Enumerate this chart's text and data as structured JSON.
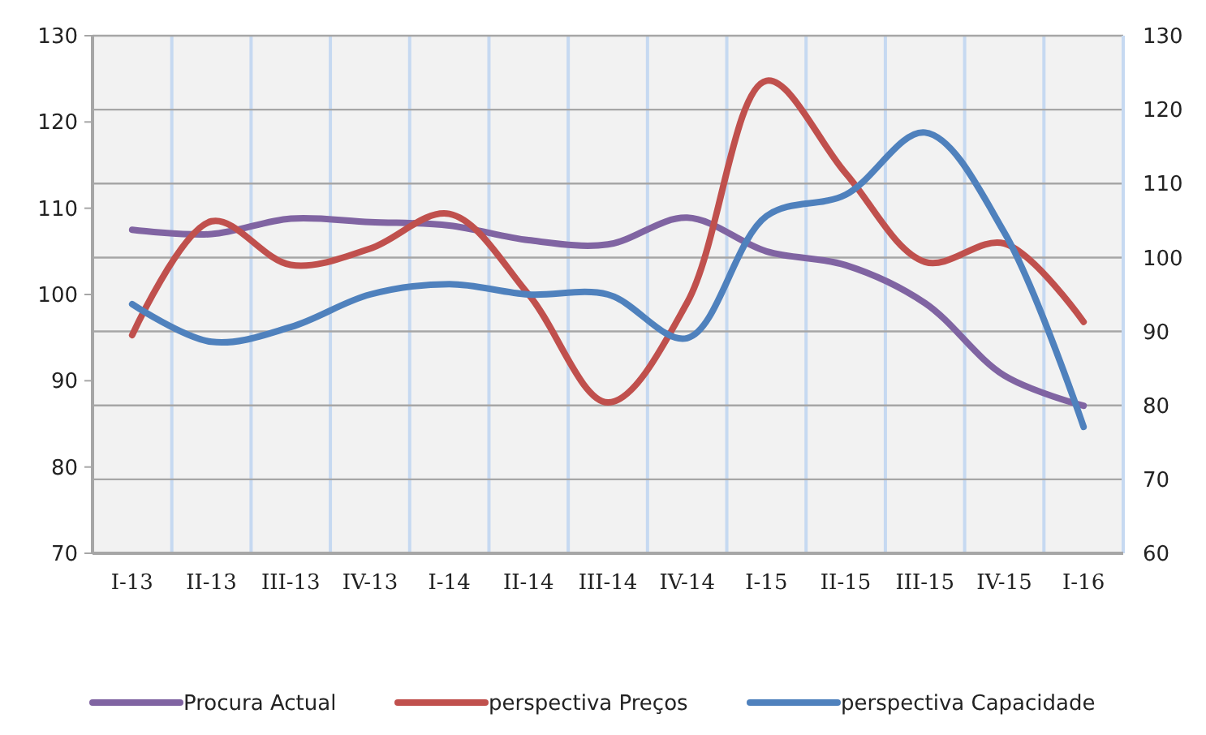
{
  "chart_data": {
    "type": "line",
    "categories": [
      "I-13",
      "II-13",
      "III-13",
      "IV-13",
      "I-14",
      "II-14",
      "III-14",
      "IV-14",
      "I-15",
      "II-15",
      "III-15",
      "IV-15",
      "I-16"
    ],
    "series": [
      {
        "name": "Procura Actual",
        "color": "#8064a2",
        "values": [
          107.5,
          107,
          108.8,
          108.4,
          108,
          106.3,
          105.8,
          108.9,
          105,
          103.4,
          99,
          90.6,
          87.1
        ]
      },
      {
        "name": "perspectiva Preços",
        "color": "#c0504d",
        "axis": "y2",
        "values": [
          89.5,
          104.9,
          99,
          101.2,
          105.9,
          95,
          80.4,
          93.9,
          123.9,
          111.4,
          99.4,
          101.9,
          91.3
        ]
      },
      {
        "name": "perspectiva Capacidade",
        "color": "#4f81bd",
        "axis": "y2",
        "values": [
          93.7,
          88.6,
          90.6,
          95,
          96.4,
          95,
          95,
          89.1,
          105.6,
          108.5,
          116.9,
          103.4,
          77.1
        ]
      }
    ],
    "ylim": [
      70,
      130
    ],
    "yticks": [
      70,
      80,
      90,
      100,
      110,
      120,
      130
    ],
    "y2lim": [
      60,
      130
    ],
    "y2ticks": [
      60,
      70,
      80,
      90,
      100,
      110,
      120,
      130
    ],
    "grid": true,
    "legend": "bottom",
    "marker": "none",
    "line_style": "solid"
  }
}
